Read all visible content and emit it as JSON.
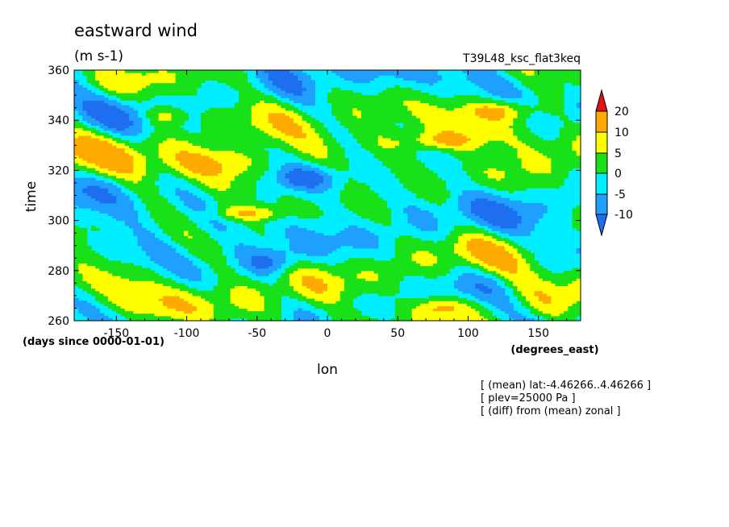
{
  "chart_data": {
    "type": "heatmap",
    "title": "eastward wind",
    "units": "(m s-1)",
    "run_label": "T39L48_ksc_flat3keq",
    "xlabel": "lon",
    "x_units": "(degrees_east)",
    "ylabel": "time",
    "y_units": "(days since 0000-01-01)",
    "xlim": [
      -180,
      180
    ],
    "ylim": [
      260,
      360
    ],
    "x_ticks": [
      -150,
      -100,
      -50,
      0,
      50,
      100,
      150
    ],
    "x_tick_labels": [
      "-150",
      "-100",
      "-50",
      "0",
      "50",
      "100",
      "150"
    ],
    "y_ticks": [
      260,
      280,
      300,
      320,
      340,
      360
    ],
    "y_tick_labels": [
      "260",
      "280",
      "300",
      "320",
      "340",
      "360"
    ],
    "colorbar": {
      "levels": [
        -10,
        -5,
        0,
        5,
        10,
        20
      ],
      "level_labels": [
        "-10",
        "-5",
        "0",
        "5",
        "10",
        "20"
      ],
      "colors": [
        "#1e6fef",
        "#1fa0ff",
        "#00eeff",
        "#19e119",
        "#ffff00",
        "#ffaa00",
        "#e01414"
      ],
      "extend": "both"
    },
    "notes": [
      "[ (mean) lat:-4.46266..4.46266 ]",
      "[ plev=25000 Pa ]",
      "[ (diff) from (mean) zonal ]"
    ],
    "features": [
      {
        "lon": [
          -130,
          -100
        ],
        "time": [
          338,
          346
        ],
        "value": 10
      },
      {
        "lon": [
          -110,
          -40
        ],
        "time": [
          316,
          330
        ],
        "value": 10
      },
      {
        "lon": [
          -80,
          -30
        ],
        "time": [
          300,
          306
        ],
        "value": 10
      },
      {
        "lon": [
          -40,
          10
        ],
        "time": [
          312,
          322
        ],
        "value": -10
      },
      {
        "lon": [
          -60,
          -20
        ],
        "time": [
          278,
          290
        ],
        "value": -10
      },
      {
        "lon": [
          50,
          110
        ],
        "time": [
          328,
          336
        ],
        "value": 10
      },
      {
        "lon": [
          60,
          100
        ],
        "time": [
          262,
          270
        ],
        "value": 10
      },
      {
        "lon": [
          100,
          150
        ],
        "time": [
          340,
          348
        ],
        "value": 10
      }
    ]
  }
}
